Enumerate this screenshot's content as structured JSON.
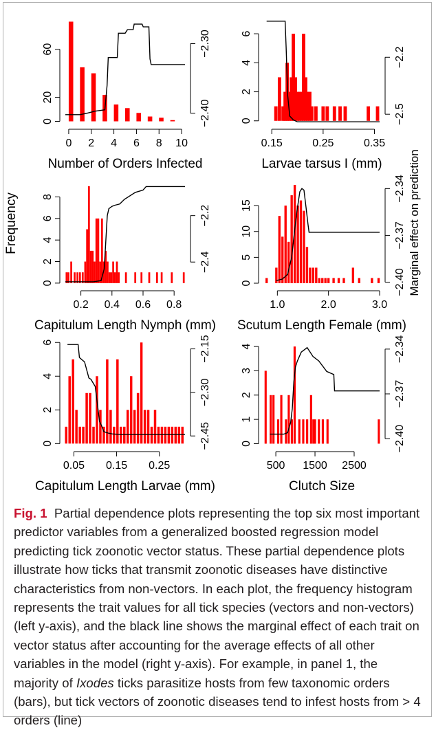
{
  "caption": {
    "label": "Fig. 1",
    "text": "Partial dependence plots representing the top six most important predictor variables from a generalized boosted regression model predicting tick zoonotic vector status. These partial dependence plots illustrate how ticks that transmit zoonotic diseases have distinctive characteristics from non-vectors. In each plot, the frequency histogram represents the trait values for all tick species (vectors and non-vectors) (left y-axis), and the black line shows the marginal effect of each trait on vector status after accounting for the average effects of all other variables in the model (right y-axis). For example, in panel 1, the majority of ",
    "italic": "Ixodes",
    "text_end": " ticks parasitize hosts from few taxonomic orders (bars), but tick vectors of zoonotic diseases tend to infest hosts from > 4 orders (line)"
  },
  "shared_labels": {
    "left_ylabel": "Frequency",
    "right_ylabel": "Marginal effect on prediction"
  },
  "colors": {
    "bars": "#ff0000",
    "line": "#000000",
    "axis": "#000000"
  },
  "chart_data": [
    {
      "type": "bar",
      "xlabel": "Number of Orders Infected",
      "xlim": [
        -0.3,
        10.3
      ],
      "ylim": [
        -2,
        85
      ],
      "y2lim": [
        -2.415,
        -2.265
      ],
      "xticks": [
        0,
        2,
        4,
        6,
        8,
        10
      ],
      "xtick_labels": [
        "0",
        "2",
        "4",
        "6",
        "8",
        "10"
      ],
      "yticks": [
        0,
        20,
        60
      ],
      "ytick_labels": [
        "0",
        "20",
        "60"
      ],
      "y2ticks": [
        -2.4,
        -2.3
      ],
      "y2tick_labels": [
        "−2.40",
        "−2.30"
      ],
      "bar_width": 0.4,
      "bars": [
        [
          0.2,
          83
        ],
        [
          1.2,
          45
        ],
        [
          2.2,
          40
        ],
        [
          3.2,
          22
        ],
        [
          4.2,
          14
        ],
        [
          5.2,
          11
        ],
        [
          6.2,
          7
        ],
        [
          7.2,
          4
        ],
        [
          8.2,
          3
        ],
        [
          9.2,
          1
        ]
      ],
      "line": [
        [
          -0.3,
          -2.402
        ],
        [
          1.0,
          -2.402
        ],
        [
          1.6,
          -2.4
        ],
        [
          2.3,
          -2.397
        ],
        [
          3.2,
          -2.395
        ],
        [
          3.4,
          -2.36
        ],
        [
          3.5,
          -2.32
        ],
        [
          4.3,
          -2.32
        ],
        [
          4.4,
          -2.285
        ],
        [
          5.0,
          -2.285
        ],
        [
          5.2,
          -2.28
        ],
        [
          5.7,
          -2.28
        ],
        [
          5.8,
          -2.272
        ],
        [
          6.5,
          -2.272
        ],
        [
          6.6,
          -2.276
        ],
        [
          7.1,
          -2.276
        ],
        [
          7.2,
          -2.322
        ],
        [
          7.3,
          -2.33
        ],
        [
          9.6,
          -2.33
        ],
        [
          10.3,
          -2.33
        ]
      ]
    },
    {
      "type": "bar",
      "xlabel": "Larvae tarsus I (mm)",
      "xlim": [
        0.135,
        0.36
      ],
      "ylim": [
        -0.2,
        7.0
      ],
      "y2lim": [
        -2.55,
        -2.0
      ],
      "xticks": [
        0.15,
        0.25,
        0.35
      ],
      "xtick_labels": [
        "0.15",
        "0.25",
        "0.35"
      ],
      "yticks": [
        0,
        2,
        4,
        6
      ],
      "ytick_labels": [
        "0",
        "2",
        "4",
        "6"
      ],
      "y2ticks": [
        -2.5,
        -2.2
      ],
      "y2tick_labels": [
        "−2.5",
        "−2.2"
      ],
      "bar_width": 0.0065,
      "bars": [
        [
          0.158,
          1
        ],
        [
          0.165,
          3
        ],
        [
          0.172,
          1
        ],
        [
          0.176,
          2
        ],
        [
          0.18,
          4
        ],
        [
          0.184,
          2
        ],
        [
          0.188,
          3
        ],
        [
          0.192,
          6
        ],
        [
          0.196,
          3
        ],
        [
          0.2,
          2
        ],
        [
          0.204,
          2
        ],
        [
          0.208,
          2
        ],
        [
          0.212,
          6
        ],
        [
          0.216,
          3
        ],
        [
          0.22,
          2
        ],
        [
          0.224,
          2
        ],
        [
          0.228,
          1
        ],
        [
          0.236,
          1
        ],
        [
          0.25,
          1
        ],
        [
          0.258,
          1
        ],
        [
          0.272,
          1
        ],
        [
          0.283,
          1
        ],
        [
          0.293,
          1
        ],
        [
          0.338,
          1
        ],
        [
          0.356,
          1
        ]
      ],
      "line": [
        [
          0.14,
          -2.01
        ],
        [
          0.176,
          -2.01
        ],
        [
          0.178,
          -2.15
        ],
        [
          0.181,
          -2.4
        ],
        [
          0.185,
          -2.51
        ],
        [
          0.192,
          -2.53
        ],
        [
          0.2,
          -2.54
        ],
        [
          0.36,
          -2.54
        ]
      ]
    },
    {
      "type": "bar",
      "xlabel": "Capitulum Length Nymph (mm)",
      "xlim": [
        0.1,
        0.87
      ],
      "ylim": [
        -0.2,
        9.5
      ],
      "y2lim": [
        -2.5,
        -2.05
      ],
      "xticks": [
        0.2,
        0.4,
        0.6,
        0.8
      ],
      "xtick_labels": [
        "0.2",
        "0.4",
        "0.6",
        "0.8"
      ],
      "yticks": [
        0,
        2,
        4,
        6,
        8
      ],
      "ytick_labels": [
        "0",
        "2",
        "4",
        "6",
        "8"
      ],
      "y2ticks": [
        -2.4,
        -2.2
      ],
      "y2tick_labels": [
        "−2.4",
        "−2.2"
      ],
      "bar_width": 0.012,
      "bars": [
        [
          0.108,
          1
        ],
        [
          0.12,
          1
        ],
        [
          0.138,
          2
        ],
        [
          0.16,
          1
        ],
        [
          0.178,
          1
        ],
        [
          0.194,
          1
        ],
        [
          0.212,
          1
        ],
        [
          0.228,
          2
        ],
        [
          0.24,
          5
        ],
        [
          0.252,
          9
        ],
        [
          0.264,
          3
        ],
        [
          0.276,
          3
        ],
        [
          0.288,
          2
        ],
        [
          0.3,
          6
        ],
        [
          0.312,
          6
        ],
        [
          0.324,
          2
        ],
        [
          0.336,
          6
        ],
        [
          0.348,
          2
        ],
        [
          0.36,
          3
        ],
        [
          0.372,
          2
        ],
        [
          0.384,
          1
        ],
        [
          0.396,
          1
        ],
        [
          0.408,
          2
        ],
        [
          0.42,
          1
        ],
        [
          0.432,
          2
        ],
        [
          0.444,
          1
        ],
        [
          0.49,
          1
        ],
        [
          0.55,
          1
        ],
        [
          0.59,
          1
        ],
        [
          0.64,
          1
        ],
        [
          0.69,
          1
        ],
        [
          0.72,
          1
        ],
        [
          0.785,
          1
        ],
        [
          0.862,
          1
        ]
      ],
      "line": [
        [
          0.1,
          -2.485
        ],
        [
          0.28,
          -2.485
        ],
        [
          0.33,
          -2.48
        ],
        [
          0.35,
          -2.43
        ],
        [
          0.37,
          -2.2
        ],
        [
          0.38,
          -2.17
        ],
        [
          0.4,
          -2.16
        ],
        [
          0.42,
          -2.155
        ],
        [
          0.45,
          -2.15
        ],
        [
          0.48,
          -2.13
        ],
        [
          0.55,
          -2.1
        ],
        [
          0.6,
          -2.09
        ],
        [
          0.62,
          -2.075
        ],
        [
          0.7,
          -2.075
        ],
        [
          0.87,
          -2.075
        ]
      ]
    },
    {
      "type": "bar",
      "xlabel": "Scutum Length Female (mm)",
      "xlim": [
        0.74,
        3.0
      ],
      "ylim": [
        -0.4,
        19.8
      ],
      "y2lim": [
        -2.402,
        -2.335
      ],
      "xticks": [
        1.0,
        2.0,
        3.0
      ],
      "xtick_labels": [
        "1.0",
        "2.0",
        "3.0"
      ],
      "yticks": [
        0,
        5,
        10,
        15
      ],
      "ytick_labels": [
        "0",
        "5",
        "10",
        "15"
      ],
      "y2ticks": [
        -2.4,
        -2.37,
        -2.34
      ],
      "y2tick_labels": [
        "−2.40",
        "−2.37",
        "−2.34"
      ],
      "bar_width": 0.045,
      "bars": [
        [
          0.79,
          1
        ],
        [
          0.98,
          3
        ],
        [
          1.04,
          13
        ],
        [
          1.1,
          9
        ],
        [
          1.16,
          15
        ],
        [
          1.22,
          8
        ],
        [
          1.28,
          17
        ],
        [
          1.34,
          19
        ],
        [
          1.4,
          15
        ],
        [
          1.46,
          16
        ],
        [
          1.52,
          14
        ],
        [
          1.58,
          7
        ],
        [
          1.64,
          3
        ],
        [
          1.7,
          3
        ],
        [
          1.76,
          3
        ],
        [
          1.82,
          1
        ],
        [
          1.88,
          1
        ],
        [
          1.94,
          1
        ],
        [
          2.0,
          1
        ],
        [
          2.1,
          1
        ],
        [
          2.2,
          1
        ],
        [
          2.3,
          1
        ],
        [
          2.48,
          3
        ],
        [
          2.6,
          1
        ],
        [
          2.85,
          1
        ],
        [
          2.98,
          1
        ]
      ],
      "line": [
        [
          0.98,
          -2.399
        ],
        [
          1.1,
          -2.398
        ],
        [
          1.2,
          -2.395
        ],
        [
          1.28,
          -2.384
        ],
        [
          1.32,
          -2.372
        ],
        [
          1.38,
          -2.355
        ],
        [
          1.44,
          -2.342
        ],
        [
          1.48,
          -2.34
        ],
        [
          1.52,
          -2.341
        ],
        [
          1.56,
          -2.352
        ],
        [
          1.6,
          -2.363
        ],
        [
          1.62,
          -2.368
        ],
        [
          1.8,
          -2.368
        ],
        [
          2.3,
          -2.368
        ],
        [
          3.0,
          -2.368
        ]
      ]
    },
    {
      "type": "bar",
      "xlabel": "Capitulum Length Larvae (mm)",
      "xlim": [
        0.03,
        0.31
      ],
      "ylim": [
        -0.15,
        6.05
      ],
      "y2lim": [
        -2.485,
        -2.125
      ],
      "xticks": [
        0.05,
        0.15,
        0.25
      ],
      "xtick_labels": [
        "0.05",
        "0.15",
        "0.25"
      ],
      "yticks": [
        0,
        2,
        4,
        6
      ],
      "ytick_labels": [
        "0",
        "2",
        "4",
        "6"
      ],
      "y2ticks": [
        -2.45,
        -2.3,
        -2.15
      ],
      "y2tick_labels": [
        "−2.45",
        "−2.30",
        "−2.15"
      ],
      "bar_width": 0.0056,
      "bars": [
        [
          0.032,
          1
        ],
        [
          0.04,
          4
        ],
        [
          0.048,
          5
        ],
        [
          0.056,
          2
        ],
        [
          0.064,
          1
        ],
        [
          0.072,
          1
        ],
        [
          0.08,
          3
        ],
        [
          0.088,
          3
        ],
        [
          0.096,
          1
        ],
        [
          0.104,
          4
        ],
        [
          0.112,
          2
        ],
        [
          0.12,
          1
        ],
        [
          0.128,
          5
        ],
        [
          0.136,
          2
        ],
        [
          0.144,
          1
        ],
        [
          0.152,
          5
        ],
        [
          0.16,
          1
        ],
        [
          0.168,
          1
        ],
        [
          0.176,
          2
        ],
        [
          0.184,
          4
        ],
        [
          0.192,
          2
        ],
        [
          0.2,
          3
        ],
        [
          0.208,
          6
        ],
        [
          0.216,
          2
        ],
        [
          0.224,
          2
        ],
        [
          0.232,
          1
        ],
        [
          0.24,
          2
        ],
        [
          0.248,
          1
        ],
        [
          0.256,
          1
        ],
        [
          0.264,
          1
        ],
        [
          0.272,
          1
        ],
        [
          0.28,
          1
        ],
        [
          0.288,
          1
        ],
        [
          0.296,
          1
        ],
        [
          0.304,
          1
        ]
      ],
      "line": [
        [
          0.035,
          -2.135
        ],
        [
          0.06,
          -2.135
        ],
        [
          0.063,
          -2.18
        ],
        [
          0.075,
          -2.195
        ],
        [
          0.085,
          -2.25
        ],
        [
          0.09,
          -2.255
        ],
        [
          0.1,
          -2.28
        ],
        [
          0.11,
          -2.4
        ],
        [
          0.115,
          -2.415
        ],
        [
          0.12,
          -2.435
        ],
        [
          0.13,
          -2.44
        ],
        [
          0.14,
          -2.443
        ],
        [
          0.16,
          -2.445
        ],
        [
          0.31,
          -2.445
        ]
      ]
    },
    {
      "type": "bar",
      "xlabel": "Clutch Size",
      "xlim": [
        200,
        3150
      ],
      "ylim": [
        -0.1,
        4.2
      ],
      "y2lim": [
        -2.405,
        -2.335
      ],
      "xticks": [
        500,
        1500,
        2500
      ],
      "xtick_labels": [
        "500",
        "1500",
        "2500"
      ],
      "yticks": [
        0,
        1,
        2,
        3,
        4
      ],
      "ytick_labels": [
        "0",
        "1",
        "2",
        "3",
        "4"
      ],
      "y2ticks": [
        -2.4,
        -2.37,
        -2.34
      ],
      "y2tick_labels": [
        "−2.40",
        "−2.37",
        "−2.34"
      ],
      "bar_width": 55,
      "bars": [
        [
          240,
          3
        ],
        [
          370,
          2
        ],
        [
          440,
          2
        ],
        [
          560,
          1
        ],
        [
          640,
          2
        ],
        [
          760,
          1
        ],
        [
          830,
          2
        ],
        [
          910,
          1
        ],
        [
          980,
          4
        ],
        [
          1100,
          1
        ],
        [
          1200,
          1
        ],
        [
          1300,
          1
        ],
        [
          1400,
          2
        ],
        [
          1460,
          1
        ],
        [
          1500,
          1
        ],
        [
          1600,
          1
        ],
        [
          1700,
          1
        ],
        [
          1820,
          1
        ],
        [
          3130,
          1
        ]
      ],
      "line": [
        [
          350,
          -2.397
        ],
        [
          700,
          -2.397
        ],
        [
          800,
          -2.396
        ],
        [
          880,
          -2.389
        ],
        [
          920,
          -2.38
        ],
        [
          960,
          -2.362
        ],
        [
          1000,
          -2.352
        ],
        [
          1050,
          -2.348
        ],
        [
          1150,
          -2.342
        ],
        [
          1250,
          -2.34
        ],
        [
          1300,
          -2.339
        ],
        [
          1350,
          -2.341
        ],
        [
          1450,
          -2.345
        ],
        [
          1600,
          -2.348
        ],
        [
          1800,
          -2.355
        ],
        [
          1980,
          -2.357
        ],
        [
          2000,
          -2.368
        ],
        [
          2100,
          -2.368
        ],
        [
          3150,
          -2.368
        ]
      ]
    }
  ]
}
